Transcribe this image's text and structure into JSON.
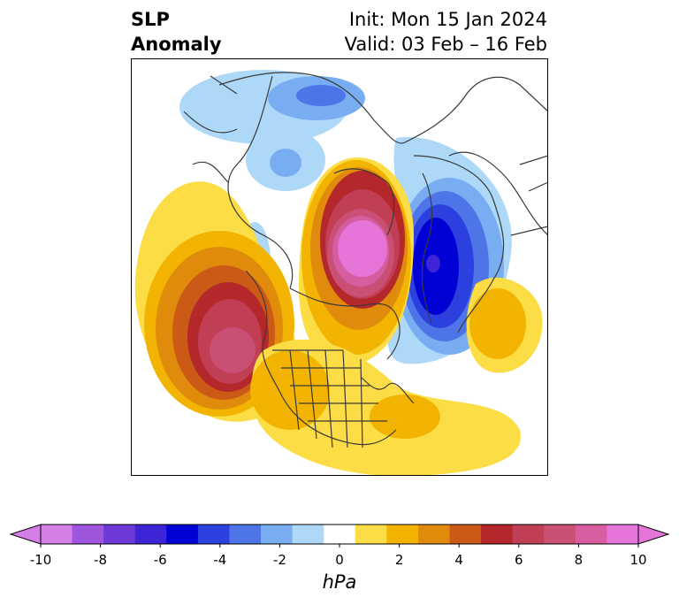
{
  "title": {
    "left_line1": "SLP",
    "left_line2": "Anomaly",
    "init": "Init: Mon 15 Jan 2024",
    "valid": "Valid: 03 Feb – 16 Feb"
  },
  "colorbar": {
    "units": "hPa",
    "ticks": [
      "-10",
      "-8",
      "-6",
      "-4",
      "-2",
      "0",
      "2",
      "4",
      "6",
      "8",
      "10"
    ],
    "colors": [
      "#d57ee6",
      "#9f56de",
      "#6d3ad8",
      "#3d24d6",
      "#0000d4",
      "#2b40de",
      "#4e75e8",
      "#78aef1",
      "#add8f8",
      "#ffffff",
      "#fddd45",
      "#f2b400",
      "#e08b0c",
      "#cb5a16",
      "#b4272a",
      "#c03f54",
      "#ca4f74",
      "#d65ea0",
      "#e675d9"
    ],
    "extend_min_color": "#d57ee6",
    "extend_max_color": "#e675d9"
  },
  "map": {
    "projection": "north-polar-stereographic",
    "outline_color": "#3a3a3a"
  }
}
